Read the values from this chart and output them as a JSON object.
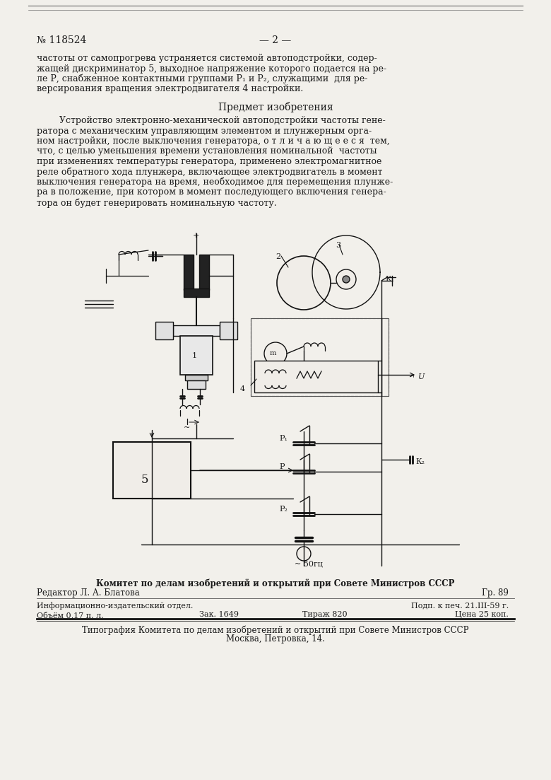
{
  "page_number": "№ 118524",
  "page_label": "— 2 —",
  "bg_color": "#f2f0eb",
  "text_color": "#1a1a1a",
  "top_lines": [
    "частоты от самопрогрева устраняется системой автоподстройки, содер-",
    "жащей дискриминатор 5, выходное напряжение которого подается на ре-",
    "ле Р, снабженное контактными группами Р₁ и Р₂, служащими  для ре-",
    "версирования вращения электродвигателя 4 настройки."
  ],
  "section_title": "Предмет изобретения",
  "body_lines": [
    "        Устройство электронно-механической автоподстройки частоты гене-",
    "ратора с механическим управляющим элементом и плунжерным орга-",
    "ном настройки, после выключения генератора, о т л и ч а ю щ е е с я  тем,",
    "что, с целью уменьшения времени установления номинальной  частоты",
    "при изменениях температуры генератора, применено электромагнитное",
    "реле обратного хода плунжера, включающее электродвигатель в момент",
    "выключения генератора на время, необходимое для перемещения плунже-",
    "ра в положение, при котором в момент последующего включения генера-",
    "тора он будет генерировать номинальную частоту."
  ],
  "footer_line1": "Комитет по делам изобретений и открытий при Совете Министров СССР",
  "footer_editor": "Редактор Л. А. Блатова",
  "footer_gr": "Гр. 89",
  "footer_sep": "Информационно-издательский отдел.",
  "footer_podp": "Подп. к печ. 21.III-59 г.",
  "footer_ob": "Объём 0,17 п. л.",
  "footer_zak": "Зак. 1649",
  "footer_tir": "Тираж 820",
  "footer_cena": "Цена 25 коп.",
  "footer_tip1": "Типография Комитета по делам изобретений и открытий при Совете Министров СССР",
  "footer_tip2": "Москва, Петровка, 14."
}
